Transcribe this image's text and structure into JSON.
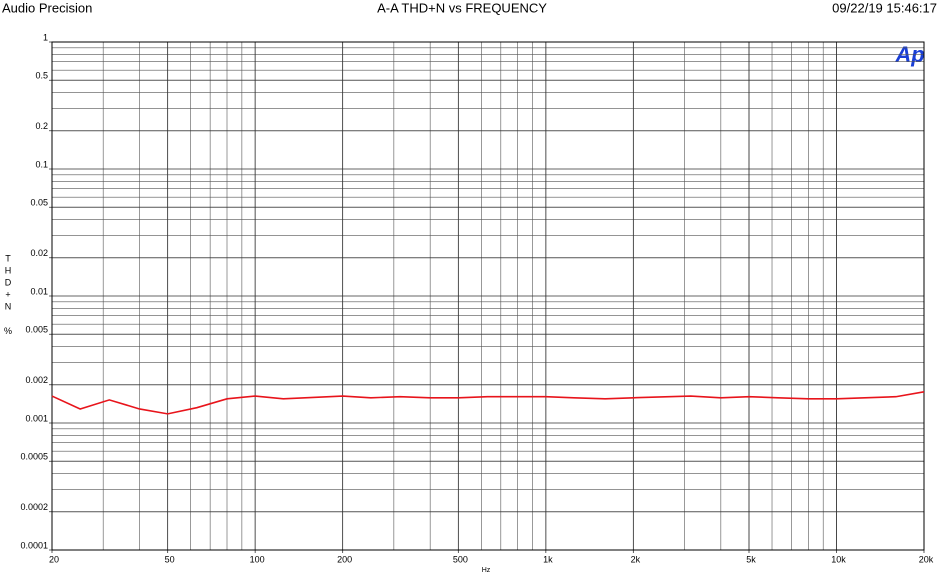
{
  "header": {
    "left": "Audio Precision",
    "right": "09/22/19 15:46:17",
    "logo": "Ap"
  },
  "chart_data": {
    "type": "line",
    "title": "A-A THD+N vs FREQUENCY",
    "x_label": "Hz",
    "y_label": [
      "T",
      "H",
      "D",
      "+",
      "N",
      "%"
    ],
    "x": [
      20,
      25,
      31.5,
      40,
      50,
      63,
      80,
      100,
      125,
      200,
      250,
      315,
      400,
      500,
      630,
      1000,
      1250,
      1600,
      2000,
      3150,
      4000,
      5000,
      6300,
      8000,
      10000,
      12500,
      16000,
      20000
    ],
    "series": [
      {
        "name": "THD+N",
        "color": "#e8141b",
        "values": [
          0.00163,
          0.00129,
          0.00152,
          0.00129,
          0.00118,
          0.00132,
          0.00155,
          0.00163,
          0.00155,
          0.00163,
          0.00158,
          0.00161,
          0.00158,
          0.00158,
          0.00161,
          0.00161,
          0.00158,
          0.00155,
          0.00158,
          0.00163,
          0.00158,
          0.00161,
          0.00158,
          0.00155,
          0.00155,
          0.00158,
          0.00161,
          0.00176
        ]
      }
    ],
    "xscale": "log",
    "yscale": "log",
    "xlim": [
      20,
      20000
    ],
    "ylim": [
      0.0001,
      1
    ],
    "xticks": [
      20,
      50,
      100,
      200,
      500,
      {
        "value": 1000,
        "label": "1k"
      },
      {
        "value": 2000,
        "label": "2k"
      },
      {
        "value": 5000,
        "label": "5k"
      },
      {
        "value": 10000,
        "label": "10k"
      },
      {
        "value": 20000,
        "label": "20k"
      }
    ],
    "yticks": [
      1,
      0.5,
      0.2,
      0.1,
      0.05,
      0.02,
      0.01,
      0.005,
      0.002,
      0.001,
      0.0005,
      0.0002,
      0.0001
    ],
    "grid": true,
    "minor_grid": true
  }
}
